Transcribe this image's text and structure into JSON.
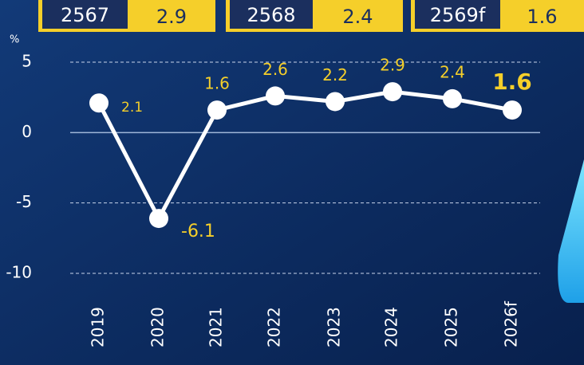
{
  "forecasts": [
    {
      "year": "2567",
      "value": 2.9
    },
    {
      "year": "2568",
      "value": 2.4
    },
    {
      "year": "2569f",
      "value": 1.6
    }
  ],
  "chart_data": {
    "type": "line",
    "y_label": "%",
    "categories": [
      "2019",
      "2020",
      "2021",
      "2022",
      "2023",
      "2024",
      "2025",
      "2026f"
    ],
    "values": [
      2.1,
      -6.1,
      1.6,
      2.6,
      2.2,
      2.9,
      2.4,
      1.6
    ],
    "color": "#ffffff",
    "label_color": "#f5cf2a",
    "ylim": [
      -10,
      5
    ],
    "yticks": [
      -10,
      -5,
      0,
      5
    ],
    "grid": true
  }
}
